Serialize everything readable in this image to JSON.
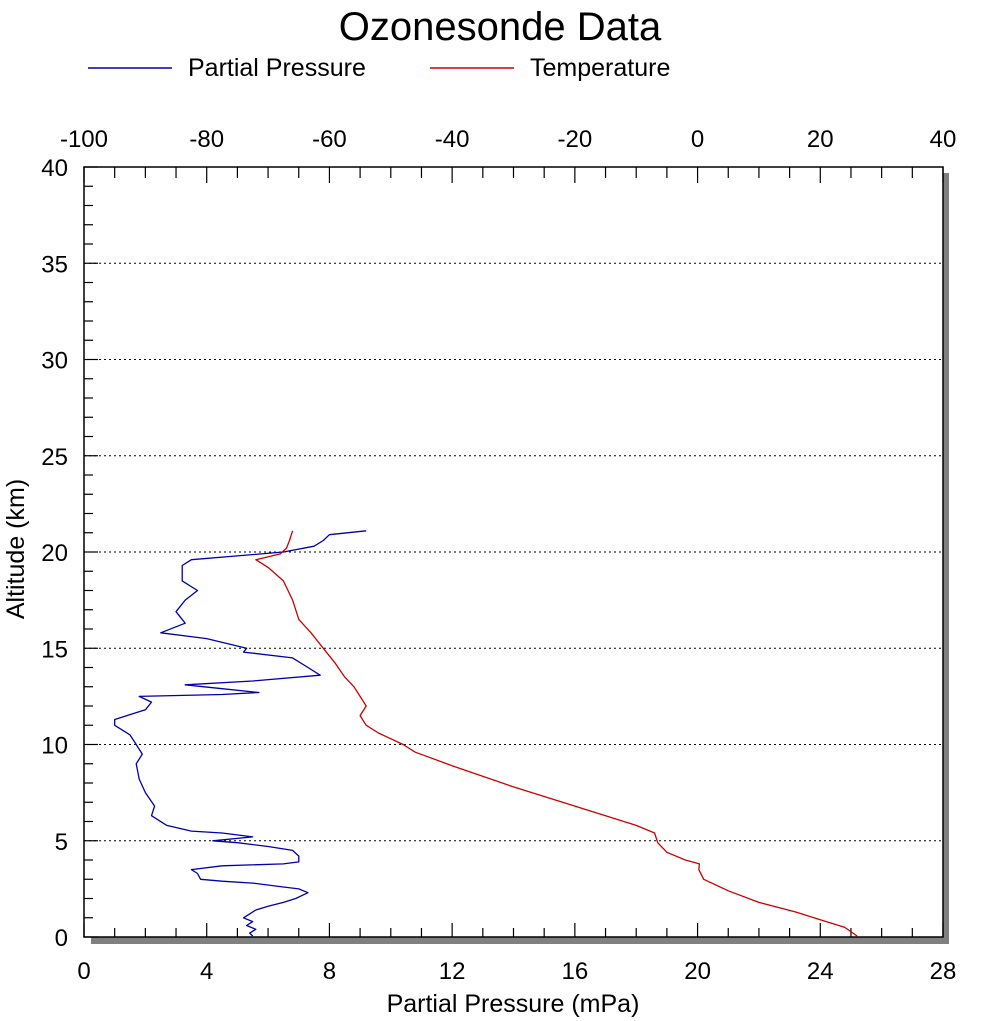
{
  "chart_data": {
    "type": "line",
    "title": "Ozonesonde Data",
    "xlabel": "Partial Pressure (mPa)",
    "ylabel": "Altitude (km)",
    "x_bottom": {
      "range": [
        0,
        28
      ],
      "ticks": [
        0,
        4,
        8,
        12,
        16,
        20,
        24,
        28
      ]
    },
    "x_top": {
      "range": [
        -100,
        40
      ],
      "ticks": [
        -100,
        -80,
        -60,
        -40,
        -20,
        0,
        20,
        40
      ]
    },
    "y": {
      "range": [
        0,
        40
      ],
      "ticks": [
        0,
        5,
        10,
        15,
        20,
        25,
        30,
        35,
        40
      ]
    },
    "grid": "horizontal dotted at major y ticks",
    "legend_position": "top",
    "colors": {
      "partial_pressure": "#0000aa",
      "temperature": "#cc0000"
    },
    "series": [
      {
        "name": "Partial Pressure",
        "axis": "bottom",
        "color": "#0000aa",
        "points": [
          [
            5.5,
            0.05
          ],
          [
            5.4,
            0.2
          ],
          [
            5.6,
            0.4
          ],
          [
            5.3,
            0.6
          ],
          [
            5.5,
            0.8
          ],
          [
            5.2,
            1.0
          ],
          [
            5.4,
            1.2
          ],
          [
            5.6,
            1.4
          ],
          [
            6.0,
            1.6
          ],
          [
            6.5,
            1.8
          ],
          [
            6.9,
            2.0
          ],
          [
            7.3,
            2.3
          ],
          [
            7.0,
            2.5
          ],
          [
            6.5,
            2.6
          ],
          [
            5.5,
            2.8
          ],
          [
            4.5,
            2.9
          ],
          [
            3.8,
            3.0
          ],
          [
            3.7,
            3.3
          ],
          [
            3.5,
            3.5
          ],
          [
            4.5,
            3.7
          ],
          [
            6.5,
            3.8
          ],
          [
            7.0,
            3.9
          ],
          [
            7.0,
            4.2
          ],
          [
            6.8,
            4.5
          ],
          [
            6.0,
            4.7
          ],
          [
            5.0,
            4.9
          ],
          [
            4.2,
            5.0
          ],
          [
            5.5,
            5.2
          ],
          [
            4.5,
            5.4
          ],
          [
            3.5,
            5.5
          ],
          [
            2.7,
            5.8
          ],
          [
            2.2,
            6.3
          ],
          [
            2.3,
            6.8
          ],
          [
            2.0,
            7.5
          ],
          [
            1.8,
            8.2
          ],
          [
            1.7,
            9.0
          ],
          [
            1.9,
            9.5
          ],
          [
            1.7,
            10.0
          ],
          [
            1.5,
            10.5
          ],
          [
            1.0,
            11.0
          ],
          [
            1.0,
            11.3
          ],
          [
            2.0,
            11.8
          ],
          [
            2.2,
            12.2
          ],
          [
            1.8,
            12.5
          ],
          [
            4.5,
            12.6
          ],
          [
            5.7,
            12.7
          ],
          [
            4.5,
            12.9
          ],
          [
            3.3,
            13.1
          ],
          [
            5.5,
            13.3
          ],
          [
            7.7,
            13.6
          ],
          [
            7.3,
            14.0
          ],
          [
            6.8,
            14.5
          ],
          [
            5.2,
            14.8
          ],
          [
            5.3,
            15.0
          ],
          [
            4.0,
            15.5
          ],
          [
            2.5,
            15.8
          ],
          [
            3.3,
            16.3
          ],
          [
            3.0,
            16.9
          ],
          [
            3.3,
            17.5
          ],
          [
            3.7,
            18.0
          ],
          [
            3.2,
            18.5
          ],
          [
            3.2,
            19.3
          ],
          [
            3.5,
            19.6
          ],
          [
            5.0,
            19.8
          ],
          [
            6.5,
            20.0
          ],
          [
            7.5,
            20.3
          ],
          [
            7.8,
            20.6
          ],
          [
            8.0,
            20.9
          ],
          [
            9.2,
            21.1
          ]
        ]
      },
      {
        "name": "Temperature",
        "axis": "top",
        "color": "#cc0000",
        "points": [
          [
            26.0,
            0.05
          ],
          [
            24.0,
            0.5
          ],
          [
            20.0,
            0.9
          ],
          [
            16.0,
            1.3
          ],
          [
            10.0,
            1.8
          ],
          [
            5.0,
            2.4
          ],
          [
            1.0,
            3.0
          ],
          [
            0.2,
            3.5
          ],
          [
            0.3,
            3.8
          ],
          [
            -2.0,
            4.0
          ],
          [
            -5.0,
            4.4
          ],
          [
            -6.5,
            4.9
          ],
          [
            -7.0,
            5.4
          ],
          [
            -10.0,
            5.8
          ],
          [
            -20.0,
            6.8
          ],
          [
            -30.0,
            7.8
          ],
          [
            -40.0,
            8.9
          ],
          [
            -46.0,
            9.6
          ],
          [
            -48.0,
            10.0
          ],
          [
            -52.0,
            10.6
          ],
          [
            -54.0,
            11.0
          ],
          [
            -55.0,
            11.5
          ],
          [
            -54.0,
            12.0
          ],
          [
            -55.0,
            12.5
          ],
          [
            -56.0,
            13.0
          ],
          [
            -57.5,
            13.5
          ],
          [
            -59.0,
            14.2
          ],
          [
            -61.0,
            15.0
          ],
          [
            -63.0,
            15.8
          ],
          [
            -65.0,
            16.5
          ],
          [
            -66.0,
            17.5
          ],
          [
            -67.5,
            18.5
          ],
          [
            -70.0,
            19.2
          ],
          [
            -72.0,
            19.6
          ],
          [
            -68.0,
            19.9
          ],
          [
            -67.0,
            20.2
          ],
          [
            -66.5,
            20.6
          ],
          [
            -66.0,
            21.1
          ]
        ]
      }
    ]
  }
}
